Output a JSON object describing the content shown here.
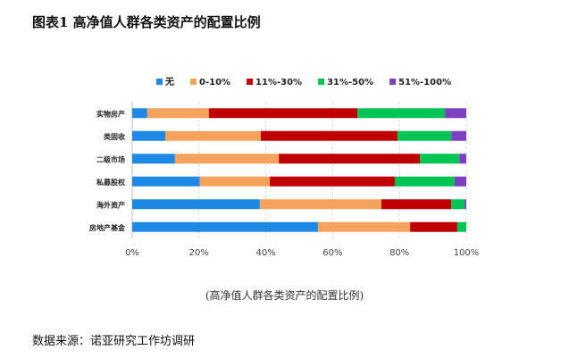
{
  "title": "图表1  高净值人群各类资产的配置比例",
  "caption": "(高净值人群各类资产的配置比例)",
  "source": "数据来源：诺亚研究工作坊调研",
  "chart_data": {
    "type": "bar",
    "orientation": "horizontal-stacked-100",
    "categories": [
      "实物房产",
      "类固收",
      "二级市场",
      "私募股权",
      "海外资产",
      "房地产基金"
    ],
    "series": [
      {
        "name": "无",
        "color": "#1e88e5",
        "values": [
          4.5,
          9.9,
          12.8,
          20.2,
          38.2,
          55.6
        ]
      },
      {
        "name": "0-10%",
        "color": "#f5a25d",
        "values": [
          18.5,
          28.6,
          31.1,
          21.0,
          36.4,
          27.6
        ]
      },
      {
        "name": "11%-30%",
        "color": "#c00000",
        "values": [
          44.4,
          40.9,
          42.2,
          37.4,
          20.9,
          14.1
        ]
      },
      {
        "name": "31%-50%",
        "color": "#00c454",
        "values": [
          26.2,
          16.1,
          11.8,
          17.9,
          4.0,
          2.7
        ]
      },
      {
        "name": "51%-100%",
        "color": "#7e3fc0",
        "values": [
          6.4,
          4.5,
          2.1,
          3.5,
          0.5,
          0.0
        ]
      }
    ],
    "xticks": [
      "0%",
      "20%",
      "40%",
      "60%",
      "80%",
      "100%"
    ],
    "xlim": [
      0,
      100
    ],
    "legend": "top",
    "grid": true
  }
}
